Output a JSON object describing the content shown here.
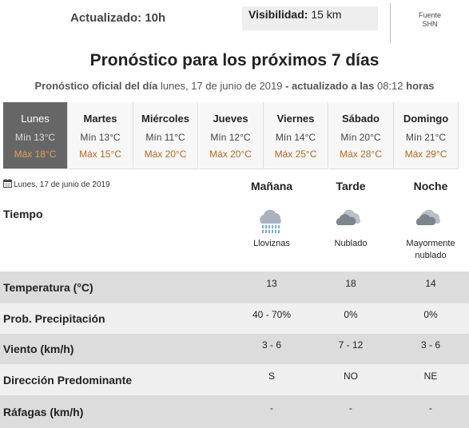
{
  "header": {
    "updated": "Actualizado: 10h",
    "visibility_label": "Visibilidad:",
    "visibility_value": "15 km",
    "source": "Fuente",
    "source_name": "SHN"
  },
  "title": "Pronóstico para los próximos 7 días",
  "subtitle": {
    "part1": "Pronóstico oficial del día",
    "date": "lunes, 17 de junio de 2019",
    "part2": "- actualizado a las",
    "time": "08:12",
    "part3": "horas"
  },
  "days": [
    {
      "name": "Lunes",
      "min": "Mín 13°C",
      "max": "Máx 18°C"
    },
    {
      "name": "Martes",
      "min": "Mín 13°C",
      "max": "Máx 15°C"
    },
    {
      "name": "Miércoles",
      "min": "Mín 11°C",
      "max": "Máx 20°C"
    },
    {
      "name": "Jueves",
      "min": "Mín 12°C",
      "max": "Máx 20°C"
    },
    {
      "name": "Viernes",
      "min": "Mín 14°C",
      "max": "Máx 25°C"
    },
    {
      "name": "Sábado",
      "min": "Mín 20°C",
      "max": "Máx 28°C"
    },
    {
      "name": "Domingo",
      "min": "Mín 21°C",
      "max": "Máx 29°C"
    }
  ],
  "detail": {
    "date": "Lunes, 17 de junio de 2019",
    "periods": [
      "Mañana",
      "Tarde",
      "Noche"
    ],
    "weather_label": "Tiempo",
    "weather": [
      "Lloviznas",
      "Nublado",
      "Mayormente nublado"
    ],
    "rows": [
      {
        "label": "Temperatura (°C)",
        "values": [
          13,
          18,
          14
        ]
      },
      {
        "label": "Prob. Precipitación",
        "values": [
          "40 - 70%",
          "0%",
          "0%"
        ]
      },
      {
        "label": "Viento (km/h)",
        "values": [
          "3 - 6",
          "7 - 12",
          "3 - 6"
        ]
      },
      {
        "label": "Dirección Predominante",
        "values": [
          "S",
          "NO",
          "NE"
        ]
      },
      {
        "label": "Ráfagas (km/h)",
        "values": [
          "-",
          "-",
          "-"
        ]
      }
    ]
  }
}
